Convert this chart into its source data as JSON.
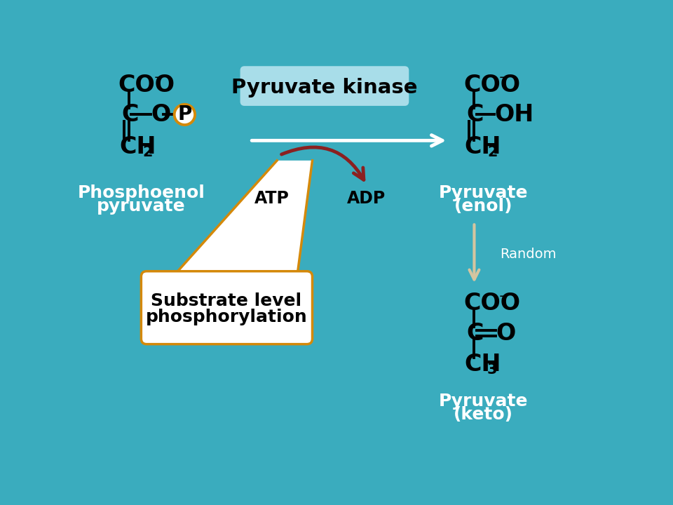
{
  "bg_color": "#3aacbe",
  "text_color_black": "#111111",
  "text_color_white": "#ffffff",
  "orange_color": "#d4890a",
  "dark_red": "#8b2020",
  "box_bg_cyan": "#a8dde9",
  "arrow_tan": "#d4c5a0",
  "title": "Pyruvate kinase",
  "substrate_label1": "Substrate level",
  "substrate_label2": "phosphorylation",
  "pep_label1": "Phosphoenol",
  "pep_label2": "pyruvate",
  "enol_label1": "Pyruvate",
  "enol_label2": "(enol)",
  "keto_label1": "Pyruvate",
  "keto_label2": "(keto)",
  "random_label": "Random",
  "atp_label": "ATP",
  "adp_label": "ADP"
}
